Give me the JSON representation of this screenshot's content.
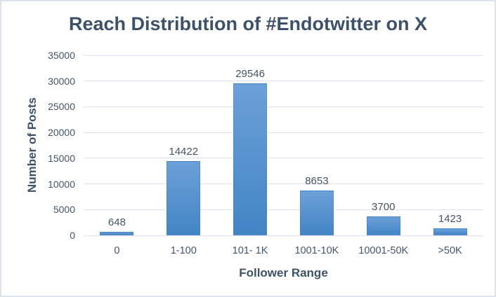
{
  "chart_data": {
    "type": "bar",
    "title": "Reach Distribution of #Endotwitter on X",
    "categories": [
      "0",
      "1-100",
      "101- 1K",
      "1001-10K",
      "10001-50K",
      ">50K"
    ],
    "values": [
      648,
      14422,
      29546,
      8653,
      3700,
      1423
    ],
    "data_labels": [
      "648",
      "14422",
      "29546",
      "8653",
      "3700",
      "1423"
    ],
    "xlabel": "Follower Range",
    "ylabel": "Number of Posts",
    "ylim": [
      0,
      35000
    ],
    "ytick_step": 5000,
    "ytick_labels": [
      "0",
      "5000",
      "10000",
      "15000",
      "20000",
      "25000",
      "30000",
      "35000"
    ],
    "grid": true,
    "legend": "none",
    "colors": {
      "bar_gradient_top": "#6ca0d8",
      "bar_gradient_bottom": "#4285c5",
      "gridline": "#dde3ee",
      "title_text": "#3d5269",
      "tick_text": "#44546a",
      "data_label_text": "#44546a",
      "frame_border": "#dee3ec",
      "background": "#ffffff"
    }
  }
}
